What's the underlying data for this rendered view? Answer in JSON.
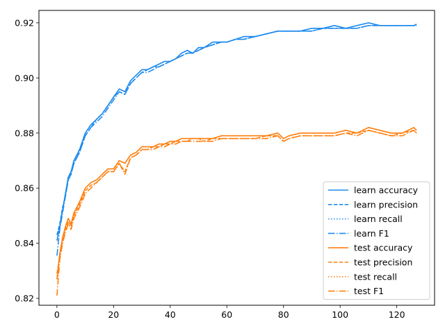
{
  "chart_data": {
    "type": "line",
    "title": "",
    "xlabel": "",
    "ylabel": "",
    "xlim": [
      -6.35,
      133.35
    ],
    "ylim": [
      0.8175,
      0.9245
    ],
    "xticks": [
      0,
      20,
      40,
      60,
      80,
      100,
      120
    ],
    "xtick_labels": [
      "0",
      "20",
      "40",
      "60",
      "80",
      "100",
      "120"
    ],
    "yticks": [
      0.82,
      0.84,
      0.86,
      0.88,
      0.9,
      0.92
    ],
    "ytick_labels": [
      "0.82",
      "0.84",
      "0.86",
      "0.88",
      "0.90",
      "0.92"
    ],
    "grid": false,
    "legend_position": "lower-right",
    "colors": {
      "learn": "#1f8bee",
      "test": "#ff7f0e"
    },
    "series": [
      {
        "name": "learn accuracy",
        "color": "#1f8bee",
        "dash": "solid",
        "x": [
          0,
          1,
          2,
          3,
          4,
          5,
          6,
          7,
          8,
          10,
          12,
          14,
          16,
          18,
          20,
          22,
          24,
          26,
          28,
          30,
          32,
          34,
          36,
          38,
          40,
          42,
          44,
          46,
          48,
          50,
          52,
          55,
          58,
          60,
          63,
          66,
          70,
          74,
          78,
          82,
          86,
          90,
          94,
          98,
          102,
          106,
          110,
          114,
          118,
          122,
          126,
          127
        ],
        "values": [
          0.841,
          0.846,
          0.852,
          0.858,
          0.864,
          0.866,
          0.87,
          0.872,
          0.874,
          0.88,
          0.883,
          0.885,
          0.887,
          0.89,
          0.893,
          0.896,
          0.895,
          0.899,
          0.901,
          0.903,
          0.903,
          0.904,
          0.905,
          0.906,
          0.906,
          0.907,
          0.909,
          0.91,
          0.909,
          0.911,
          0.911,
          0.913,
          0.913,
          0.913,
          0.914,
          0.915,
          0.915,
          0.916,
          0.917,
          0.917,
          0.917,
          0.918,
          0.918,
          0.919,
          0.918,
          0.919,
          0.92,
          0.919,
          0.919,
          0.919,
          0.919,
          0.9195
        ]
      },
      {
        "name": "learn precision",
        "color": "#1f8bee",
        "dash": "dashed",
        "x": [
          0,
          1,
          2,
          3,
          4,
          5,
          6,
          7,
          8,
          10,
          12,
          14,
          16,
          18,
          20,
          22,
          24,
          26,
          28,
          30,
          32,
          34,
          36,
          38,
          40,
          42,
          44,
          46,
          48,
          50,
          52,
          55,
          58,
          60,
          63,
          66,
          70,
          74,
          78,
          82,
          86,
          90,
          94,
          98,
          102,
          106,
          110,
          114,
          118,
          122,
          126,
          127
        ],
        "values": [
          0.843,
          0.847,
          0.853,
          0.857,
          0.863,
          0.865,
          0.869,
          0.871,
          0.873,
          0.879,
          0.882,
          0.885,
          0.887,
          0.89,
          0.893,
          0.895,
          0.894,
          0.898,
          0.9,
          0.902,
          0.903,
          0.904,
          0.904,
          0.905,
          0.906,
          0.907,
          0.908,
          0.909,
          0.909,
          0.91,
          0.911,
          0.912,
          0.913,
          0.913,
          0.914,
          0.914,
          0.915,
          0.916,
          0.917,
          0.917,
          0.917,
          0.917,
          0.918,
          0.918,
          0.918,
          0.918,
          0.919,
          0.919,
          0.919,
          0.919,
          0.919,
          0.919
        ]
      },
      {
        "name": "learn recall",
        "color": "#1f8bee",
        "dash": "dotted",
        "x": [
          0,
          1,
          2,
          3,
          4,
          5,
          6,
          7,
          8,
          10,
          12,
          14,
          16,
          18,
          20,
          22,
          24,
          26,
          28,
          30,
          32,
          34,
          36,
          38,
          40,
          42,
          44,
          46,
          48,
          50,
          52,
          55,
          58,
          60,
          63,
          66,
          70,
          74,
          78,
          82,
          86,
          90,
          94,
          98,
          102,
          106,
          110,
          114,
          118,
          122,
          126,
          127
        ],
        "values": [
          0.841,
          0.846,
          0.852,
          0.858,
          0.864,
          0.866,
          0.87,
          0.872,
          0.874,
          0.88,
          0.883,
          0.885,
          0.887,
          0.89,
          0.893,
          0.896,
          0.895,
          0.899,
          0.901,
          0.903,
          0.903,
          0.904,
          0.905,
          0.906,
          0.906,
          0.907,
          0.909,
          0.91,
          0.909,
          0.911,
          0.911,
          0.913,
          0.913,
          0.913,
          0.914,
          0.915,
          0.915,
          0.916,
          0.917,
          0.917,
          0.917,
          0.918,
          0.918,
          0.919,
          0.918,
          0.919,
          0.92,
          0.919,
          0.919,
          0.919,
          0.919,
          0.9195
        ]
      },
      {
        "name": "learn F1",
        "color": "#1f8bee",
        "dash": "dashdot",
        "x": [
          0,
          1,
          2,
          3,
          4,
          5,
          6,
          7,
          8,
          10,
          12,
          14,
          16,
          18,
          20,
          22,
          24,
          26,
          28,
          30,
          32,
          34,
          36,
          38,
          40,
          42,
          44,
          46,
          48,
          50,
          52,
          55,
          58,
          60,
          63,
          66,
          70,
          74,
          78,
          82,
          86,
          90,
          94,
          98,
          102,
          106,
          110,
          114,
          118,
          122,
          126,
          127
        ],
        "values": [
          0.8355,
          0.845,
          0.851,
          0.857,
          0.863,
          0.865,
          0.869,
          0.871,
          0.873,
          0.879,
          0.882,
          0.884,
          0.886,
          0.889,
          0.892,
          0.895,
          0.894,
          0.898,
          0.9,
          0.902,
          0.902,
          0.903,
          0.904,
          0.905,
          0.906,
          0.907,
          0.908,
          0.909,
          0.909,
          0.91,
          0.911,
          0.912,
          0.913,
          0.913,
          0.914,
          0.914,
          0.915,
          0.916,
          0.917,
          0.917,
          0.917,
          0.917,
          0.918,
          0.918,
          0.918,
          0.918,
          0.919,
          0.919,
          0.919,
          0.919,
          0.919,
          0.919
        ]
      },
      {
        "name": "test accuracy",
        "color": "#ff7f0e",
        "dash": "solid",
        "x": [
          0,
          1,
          2,
          3,
          4,
          5,
          6,
          7,
          8,
          10,
          12,
          14,
          16,
          18,
          20,
          22,
          24,
          26,
          28,
          30,
          32,
          34,
          36,
          38,
          40,
          42,
          44,
          46,
          48,
          50,
          52,
          55,
          58,
          60,
          63,
          66,
          70,
          74,
          78,
          80,
          82,
          86,
          90,
          94,
          98,
          102,
          106,
          110,
          114,
          118,
          122,
          126,
          127
        ],
        "values": [
          0.827,
          0.836,
          0.842,
          0.846,
          0.849,
          0.847,
          0.851,
          0.853,
          0.855,
          0.86,
          0.862,
          0.863,
          0.865,
          0.867,
          0.867,
          0.87,
          0.869,
          0.872,
          0.873,
          0.875,
          0.875,
          0.875,
          0.876,
          0.876,
          0.877,
          0.877,
          0.878,
          0.878,
          0.878,
          0.878,
          0.878,
          0.878,
          0.879,
          0.879,
          0.879,
          0.879,
          0.879,
          0.879,
          0.88,
          0.878,
          0.879,
          0.88,
          0.88,
          0.88,
          0.88,
          0.881,
          0.88,
          0.882,
          0.881,
          0.88,
          0.88,
          0.882,
          0.881
        ]
      },
      {
        "name": "test precision",
        "color": "#ff7f0e",
        "dash": "dashed",
        "x": [
          0,
          1,
          2,
          3,
          4,
          5,
          6,
          7,
          8,
          10,
          12,
          14,
          16,
          18,
          20,
          22,
          24,
          26,
          28,
          30,
          32,
          34,
          36,
          38,
          40,
          42,
          44,
          46,
          48,
          50,
          52,
          55,
          58,
          60,
          63,
          66,
          70,
          74,
          78,
          80,
          82,
          86,
          90,
          94,
          98,
          102,
          106,
          110,
          114,
          118,
          122,
          126,
          127
        ],
        "values": [
          0.829,
          0.835,
          0.841,
          0.845,
          0.848,
          0.846,
          0.85,
          0.852,
          0.854,
          0.859,
          0.861,
          0.862,
          0.864,
          0.866,
          0.866,
          0.869,
          0.866,
          0.871,
          0.872,
          0.874,
          0.874,
          0.875,
          0.875,
          0.876,
          0.876,
          0.877,
          0.877,
          0.877,
          0.878,
          0.878,
          0.877,
          0.878,
          0.878,
          0.878,
          0.878,
          0.878,
          0.878,
          0.879,
          0.879,
          0.877,
          0.878,
          0.879,
          0.879,
          0.879,
          0.879,
          0.88,
          0.88,
          0.881,
          0.88,
          0.879,
          0.88,
          0.881,
          0.88
        ]
      },
      {
        "name": "test recall",
        "color": "#ff7f0e",
        "dash": "dotted",
        "x": [
          0,
          1,
          2,
          3,
          4,
          5,
          6,
          7,
          8,
          10,
          12,
          14,
          16,
          18,
          20,
          22,
          24,
          26,
          28,
          30,
          32,
          34,
          36,
          38,
          40,
          42,
          44,
          46,
          48,
          50,
          52,
          55,
          58,
          60,
          63,
          66,
          70,
          74,
          78,
          80,
          82,
          86,
          90,
          94,
          98,
          102,
          106,
          110,
          114,
          118,
          122,
          126,
          127
        ],
        "values": [
          0.827,
          0.836,
          0.842,
          0.846,
          0.849,
          0.847,
          0.851,
          0.853,
          0.855,
          0.86,
          0.862,
          0.863,
          0.865,
          0.867,
          0.867,
          0.87,
          0.869,
          0.872,
          0.873,
          0.875,
          0.875,
          0.875,
          0.876,
          0.876,
          0.877,
          0.877,
          0.878,
          0.878,
          0.878,
          0.878,
          0.878,
          0.878,
          0.879,
          0.879,
          0.879,
          0.879,
          0.879,
          0.879,
          0.88,
          0.878,
          0.879,
          0.88,
          0.88,
          0.88,
          0.88,
          0.881,
          0.88,
          0.882,
          0.881,
          0.88,
          0.88,
          0.882,
          0.881
        ]
      },
      {
        "name": "test F1",
        "color": "#ff7f0e",
        "dash": "dashdot",
        "x": [
          0,
          1,
          2,
          3,
          4,
          5,
          6,
          7,
          8,
          10,
          12,
          14,
          16,
          18,
          20,
          22,
          24,
          26,
          28,
          30,
          32,
          34,
          36,
          38,
          40,
          42,
          44,
          46,
          48,
          50,
          52,
          55,
          58,
          60,
          63,
          66,
          70,
          74,
          78,
          80,
          82,
          86,
          90,
          94,
          98,
          102,
          106,
          110,
          114,
          118,
          122,
          126,
          127
        ],
        "values": [
          0.821,
          0.834,
          0.84,
          0.844,
          0.847,
          0.845,
          0.849,
          0.851,
          0.853,
          0.858,
          0.86,
          0.862,
          0.864,
          0.866,
          0.866,
          0.869,
          0.865,
          0.871,
          0.872,
          0.874,
          0.874,
          0.874,
          0.875,
          0.875,
          0.876,
          0.876,
          0.877,
          0.877,
          0.877,
          0.877,
          0.877,
          0.877,
          0.878,
          0.878,
          0.878,
          0.878,
          0.878,
          0.878,
          0.879,
          0.877,
          0.878,
          0.879,
          0.879,
          0.879,
          0.879,
          0.88,
          0.879,
          0.881,
          0.88,
          0.879,
          0.879,
          0.881,
          0.88
        ]
      }
    ]
  }
}
